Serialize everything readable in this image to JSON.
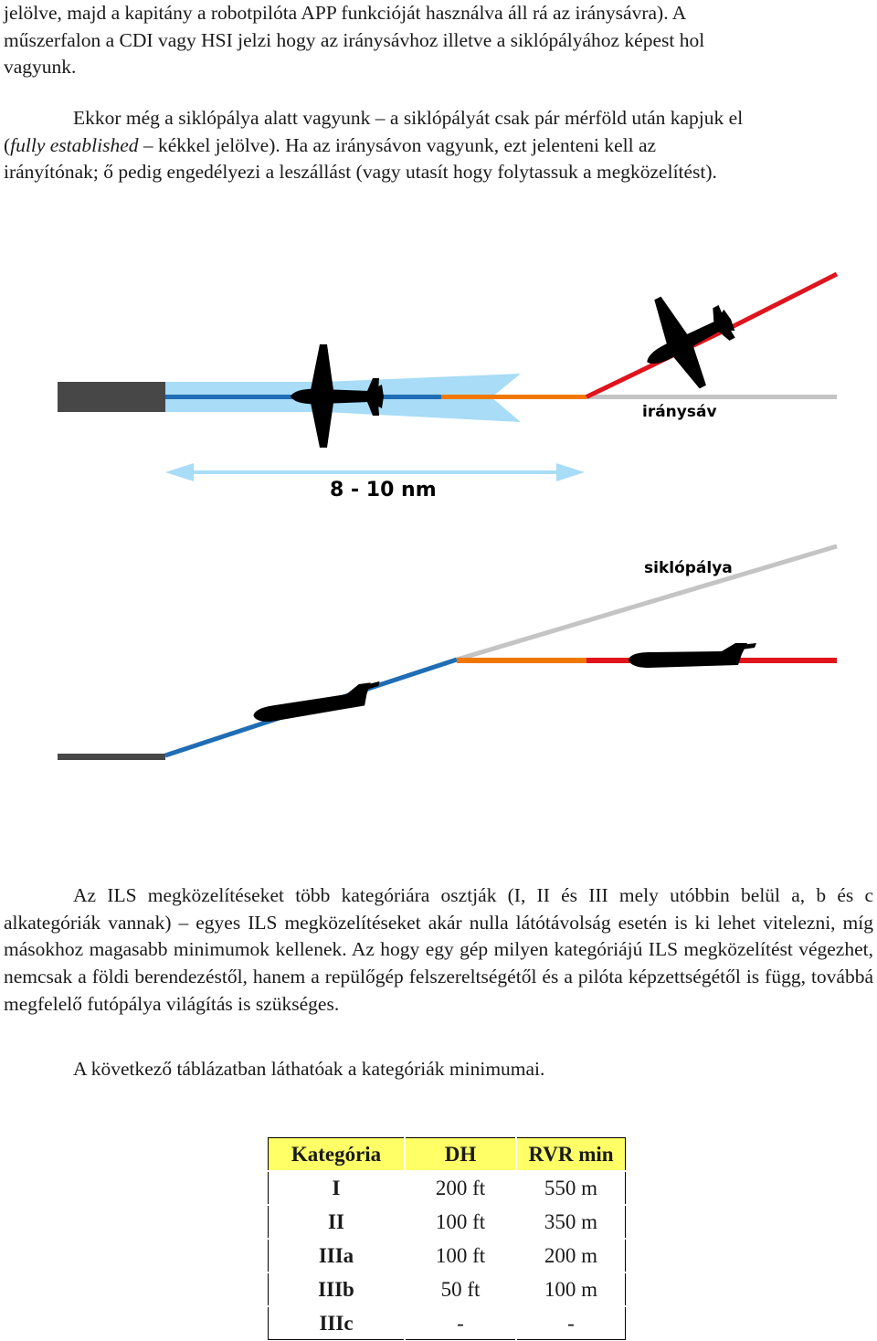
{
  "paragraphs": {
    "p1_line1": "jelölve, majd a kapitány a robotpilóta APP funkcióját használva áll rá az iránysávra). A",
    "p1_line2": "műszerfalon a CDI vagy HSI jelzi hogy az iránysávhoz illetve a siklópályához képest hol",
    "p1_line3": "vagyunk.",
    "p2_a": "Ekkor még a siklópálya alatt vagyunk – a siklópályát csak pár mérföld után kapjuk el",
    "p2_b_italic": "fully established",
    "p2_b_rest": " – kékkel jelölve). Ha az iránysávon vagyunk, ezt jelenteni kell az",
    "p2_c": "irányítónak; ő pedig engedélyezi a leszállást (vagy utasít hogy folytassuk a megközelítést).",
    "p3": "Az ILS megközelítéseket több kategóriára osztják (I, II és III mely utóbbin belül a, b és c alkategóriák vannak) – egyes ILS megközelítéseket akár nulla látótávolság esetén is ki lehet vitelezni, míg másokhoz magasabb minimumok kellenek. Az hogy egy gép milyen kategóriájú ILS megközelítést végezhet, nemcsak a földi berendezéstől, hanem a repülőgép felszereltségétől és a pilóta képzettségétől is függ, továbbá megfelelő futópálya világítás is szükséges.",
    "p4": "A következő táblázatban láthatóak a kategóriák minimumai."
  },
  "diagram": {
    "localizer_label": "iránysáv",
    "distance_label": "8 - 10 nm",
    "glideslope_label": "siklópálya",
    "colors": {
      "runway": "#474747",
      "blue": "#1f6db5",
      "light_blue": "#a8dcf7",
      "orange": "#f07800",
      "red": "#e0141c",
      "grey": "#c4c4c4",
      "aircraft": "#000000"
    }
  },
  "table": {
    "headers": [
      "Kategória",
      "DH",
      "RVR min"
    ],
    "header_color": "#ffff66",
    "rows": [
      [
        "I",
        "200 ft",
        "550 m"
      ],
      [
        "II",
        "100 ft",
        "350 m"
      ],
      [
        "IIIa",
        "100 ft",
        "200 m"
      ],
      [
        "IIIb",
        "50 ft",
        "100 m"
      ],
      [
        "IIIc",
        "-",
        "-"
      ]
    ]
  }
}
